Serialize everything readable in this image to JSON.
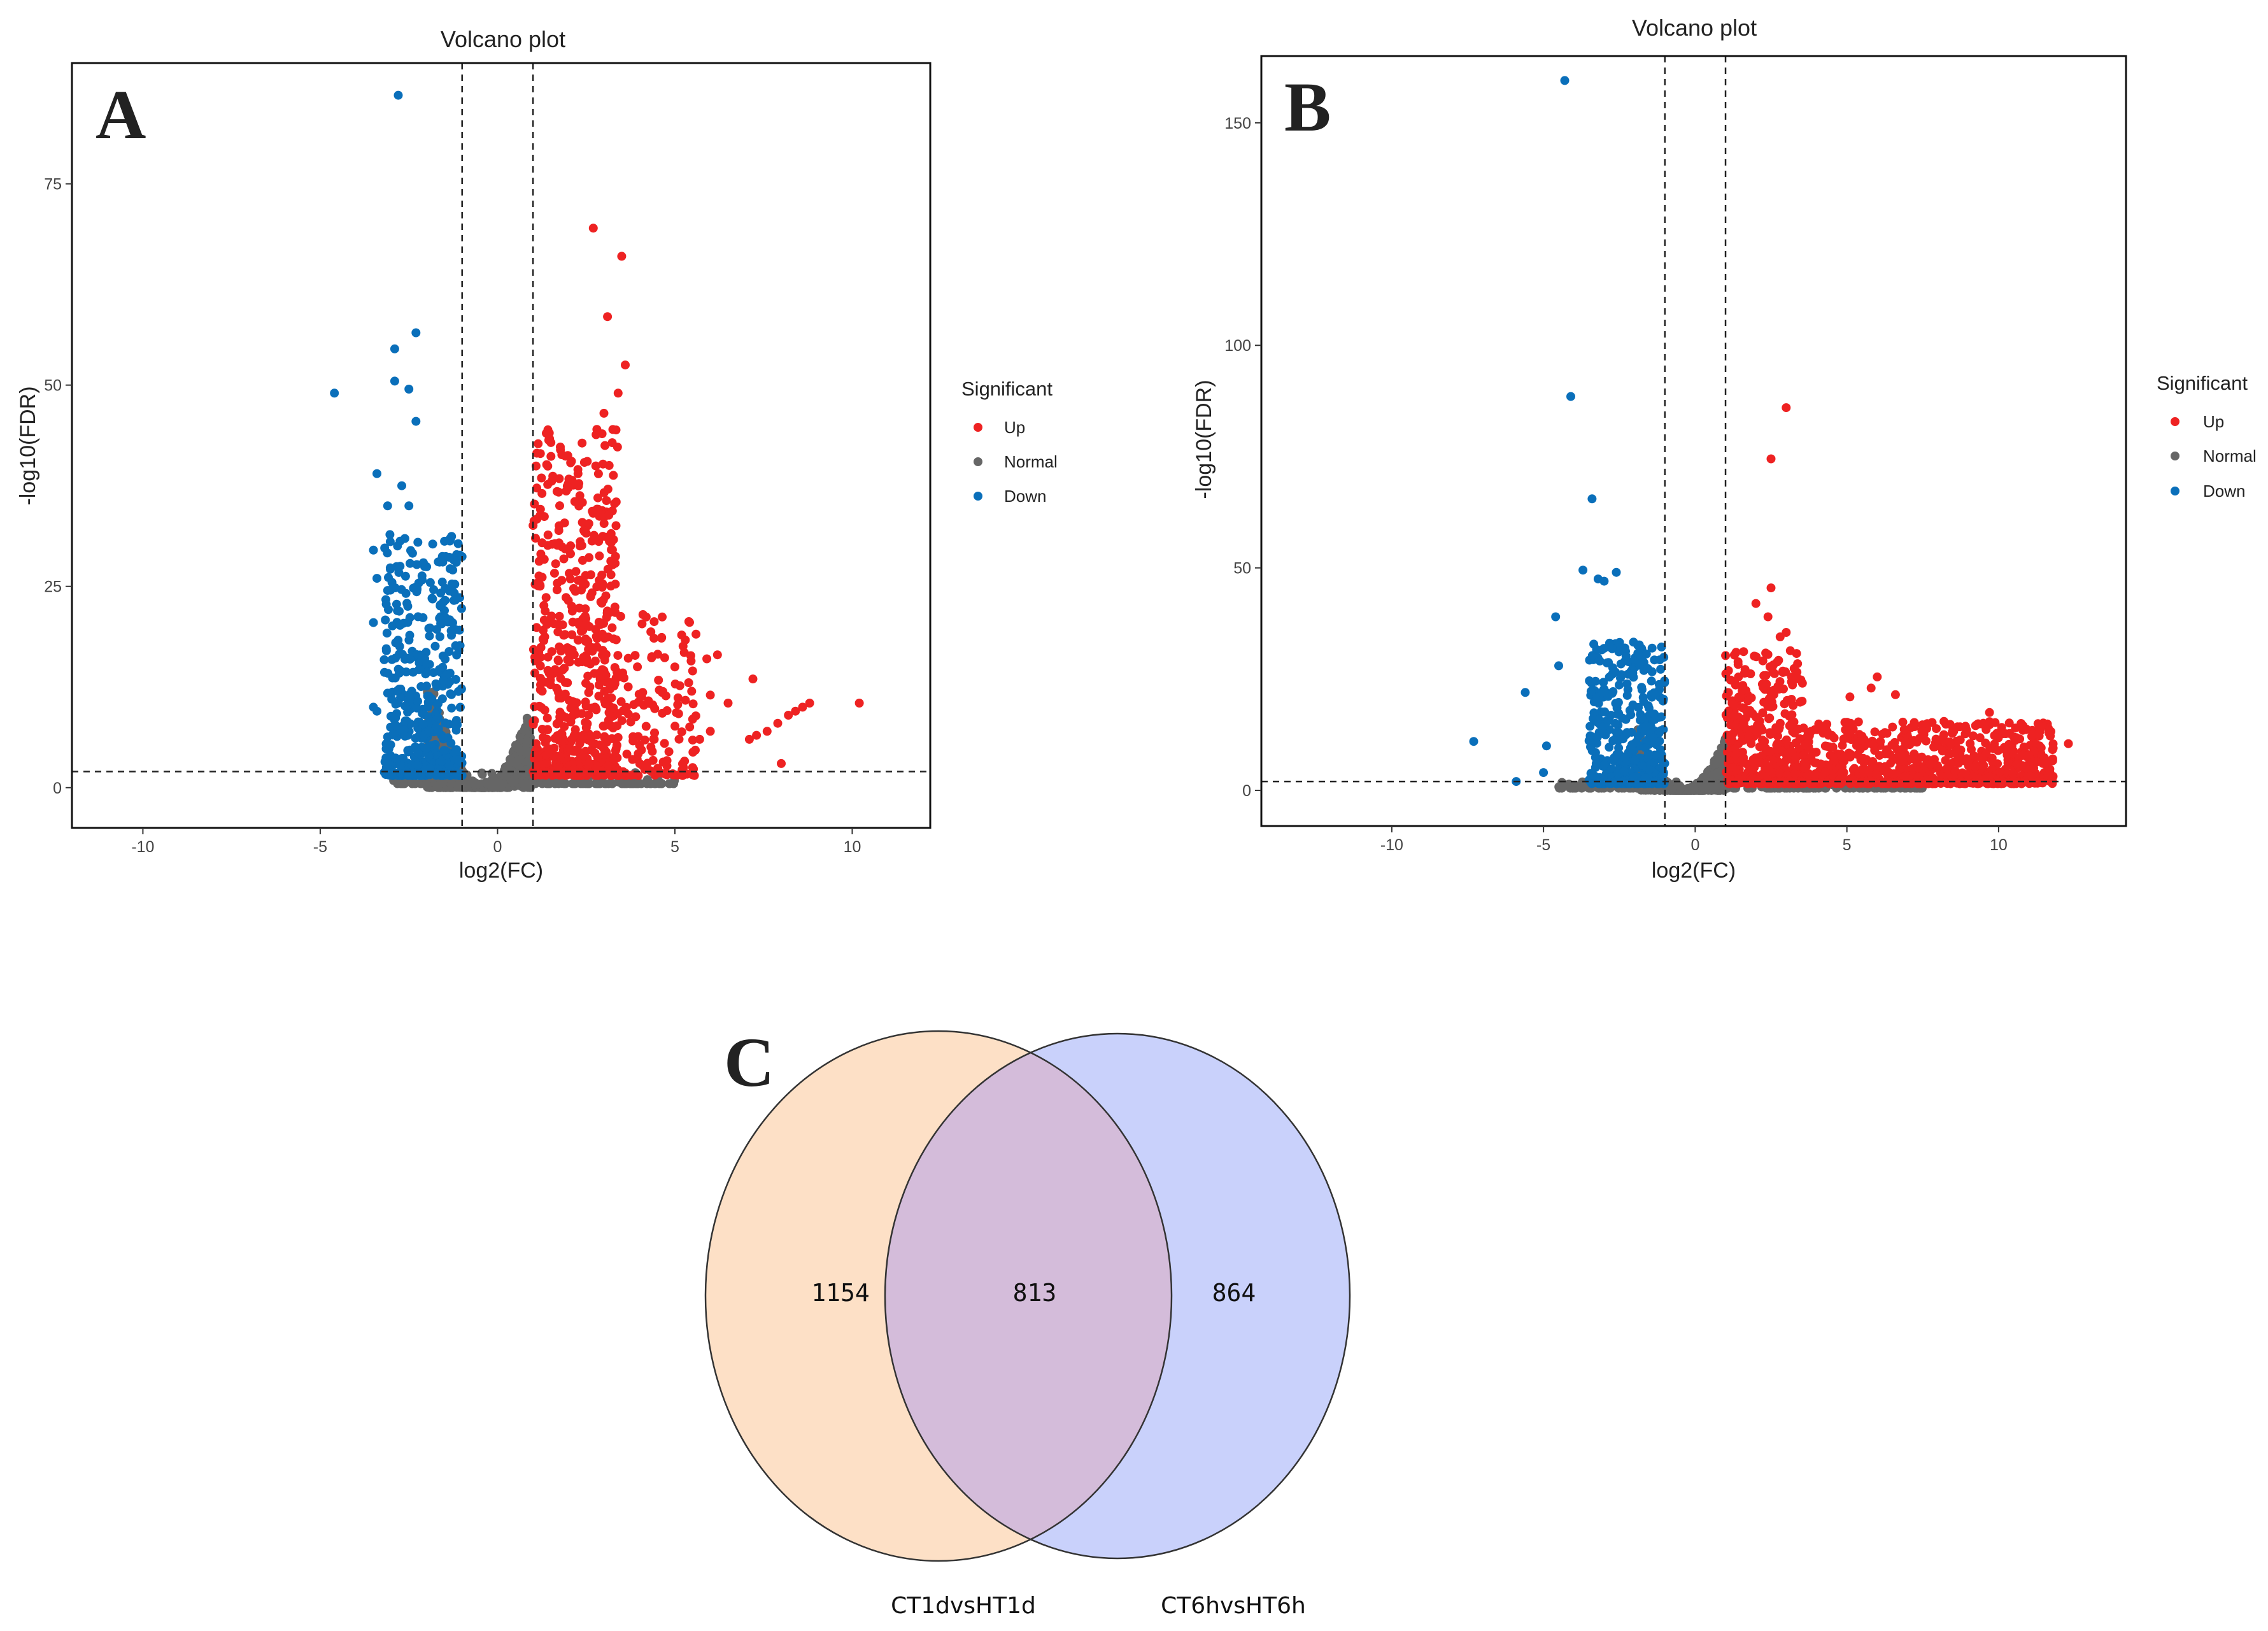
{
  "colors": {
    "up": "#ee2222",
    "normal": "#666666",
    "down": "#0a6fba",
    "set1": "#fde0c6",
    "set2": "#c9d1fb",
    "overlap": "#d4bcda"
  },
  "panels": [
    {
      "letter": "A"
    },
    {
      "letter": "B"
    },
    {
      "letter": "C"
    }
  ],
  "chart_data": [
    {
      "type": "scatter",
      "title": "Volcano plot",
      "xlabel": "log2(FC)",
      "ylabel": "-log10(FDR)",
      "xlim": [
        -12,
        12.2
      ],
      "ylim": [
        -5,
        90
      ],
      "xticks": [
        -10,
        -5,
        0,
        5,
        10
      ],
      "yticks": [
        0,
        25,
        50,
        75
      ],
      "thresholds": {
        "log2fc": [
          -1,
          1
        ],
        "fdr_line": 2
      },
      "legend": {
        "title": "Significant",
        "position": "right",
        "entries": [
          "Up",
          "Normal",
          "Down"
        ]
      },
      "series": [
        {
          "name": "Up",
          "points": [
            [
              2.7,
              69.5
            ],
            [
              3.5,
              66
            ],
            [
              3.1,
              58.5
            ],
            [
              3.6,
              52.5
            ],
            [
              3.4,
              49
            ],
            [
              3.0,
              46.5
            ],
            [
              2.8,
              44.5
            ],
            [
              4.1,
              21.5
            ],
            [
              10.2,
              10.5
            ],
            [
              8.8,
              10.5
            ],
            [
              8.6,
              10
            ],
            [
              8.4,
              9.5
            ],
            [
              8.2,
              9
            ],
            [
              7.9,
              8
            ],
            [
              7.6,
              7
            ],
            [
              7.3,
              6.5
            ],
            [
              7.1,
              6
            ],
            [
              6.2,
              16.5
            ],
            [
              5.9,
              16
            ],
            [
              5.0,
              15
            ],
            [
              5.5,
              14.5
            ],
            [
              7.2,
              13.5
            ],
            [
              6.0,
              11.5
            ],
            [
              6.5,
              10.5
            ],
            [
              5.5,
              8.5
            ],
            [
              6.0,
              7
            ],
            [
              5.7,
              6
            ],
            [
              8.0,
              3
            ],
            [
              5.5,
              2.5
            ]
          ]
        },
        {
          "name": "Down",
          "points": [
            [
              -2.8,
              86
            ],
            [
              -4.6,
              49
            ],
            [
              -2.3,
              56.5
            ],
            [
              -2.9,
              54.5
            ],
            [
              -2.9,
              50.5
            ],
            [
              -2.5,
              49.5
            ],
            [
              -3.4,
              39
            ],
            [
              -2.7,
              37.5
            ],
            [
              -3.1,
              35
            ],
            [
              -2.5,
              35
            ],
            [
              -2.3,
              45.5
            ],
            [
              -3.5,
              29.5
            ],
            [
              -3.4,
              26
            ],
            [
              -3.1,
              24.5
            ],
            [
              -3.5,
              20.5
            ],
            [
              -3.5,
              10
            ],
            [
              -3.4,
              9.5
            ],
            [
              -3.1,
              3
            ]
          ]
        },
        {
          "name": "Normal",
          "points": []
        }
      ],
      "clusters": [
        {
          "series": "Up",
          "xrange": [
            1.0,
            3.4
          ],
          "ymax": 43,
          "count": 620
        },
        {
          "series": "Up",
          "xrange": [
            3.2,
            5.6
          ],
          "ymax": 20,
          "count": 140
        },
        {
          "series": "Down",
          "xrange": [
            -3.2,
            -1.0
          ],
          "ymax": 30,
          "count": 480
        },
        {
          "series": "Normal",
          "xrange": [
            -2.0,
            1.0
          ],
          "ymax": 12,
          "count": 900
        },
        {
          "series": "Normal",
          "xrange": [
            -3.0,
            5.0
          ],
          "ymax": 2,
          "count": 180
        }
      ]
    },
    {
      "type": "scatter",
      "title": "Volcano plot",
      "xlabel": "log2(FC)",
      "ylabel": "-log10(FDR)",
      "xlim": [
        -14.3,
        14.2
      ],
      "ylim": [
        -8,
        165
      ],
      "xticks": [
        -10,
        -5,
        0,
        5,
        10
      ],
      "yticks": [
        0,
        50,
        100,
        150
      ],
      "thresholds": {
        "log2fc": [
          -1,
          1
        ],
        "fdr_line": 2
      },
      "legend": {
        "title": "Significant",
        "position": "right",
        "entries": [
          "Up",
          "Normal",
          "Down"
        ]
      },
      "series": [
        {
          "name": "Up",
          "points": [
            [
              3.0,
              86
            ],
            [
              2.5,
              74.5
            ],
            [
              2.0,
              42
            ],
            [
              2.5,
              45.5
            ],
            [
              2.4,
              39
            ],
            [
              3.0,
              35.5
            ],
            [
              2.8,
              34.5
            ],
            [
              12.3,
              10.5
            ],
            [
              11.8,
              9.5
            ],
            [
              11.3,
              15
            ],
            [
              10.8,
              13.5
            ],
            [
              10.5,
              12
            ],
            [
              9.7,
              17.5
            ],
            [
              5.1,
              21
            ],
            [
              6.0,
              25.5
            ],
            [
              5.8,
              23
            ],
            [
              6.6,
              21.5
            ],
            [
              8.2,
              15.5
            ],
            [
              10.0,
              9
            ],
            [
              11.0,
              8
            ]
          ]
        },
        {
          "name": "Down",
          "points": [
            [
              -4.3,
              159.5
            ],
            [
              -4.1,
              88.5
            ],
            [
              -3.4,
              65.5
            ],
            [
              -3.7,
              49.5
            ],
            [
              -3.2,
              47.5
            ],
            [
              -2.6,
              49
            ],
            [
              -3.0,
              47
            ],
            [
              -4.6,
              39
            ],
            [
              -4.5,
              28
            ],
            [
              -5.6,
              22
            ],
            [
              -7.3,
              11
            ],
            [
              -5.9,
              2
            ],
            [
              -4.9,
              10
            ],
            [
              -5.0,
              4
            ]
          ]
        },
        {
          "name": "Normal",
          "points": []
        }
      ],
      "clusters": [
        {
          "series": "Up",
          "xrange": [
            1.0,
            3.6
          ],
          "ymax": 30,
          "count": 400
        },
        {
          "series": "Up",
          "xrange": [
            3.5,
            11.8
          ],
          "ymax": 14,
          "count": 700
        },
        {
          "series": "Down",
          "xrange": [
            -3.5,
            -1.0
          ],
          "ymax": 32,
          "count": 430
        },
        {
          "series": "Normal",
          "xrange": [
            -1.9,
            1.0
          ],
          "ymax": 14,
          "count": 700
        },
        {
          "series": "Normal",
          "xrange": [
            -4.5,
            7.5
          ],
          "ymax": 2,
          "count": 200
        }
      ]
    },
    {
      "type": "venn",
      "sets": [
        {
          "name": "CT1dvsHT1d",
          "only": 1154
        },
        {
          "name": "CT6hvsHT6h",
          "only": 864
        }
      ],
      "intersection": 813
    }
  ]
}
